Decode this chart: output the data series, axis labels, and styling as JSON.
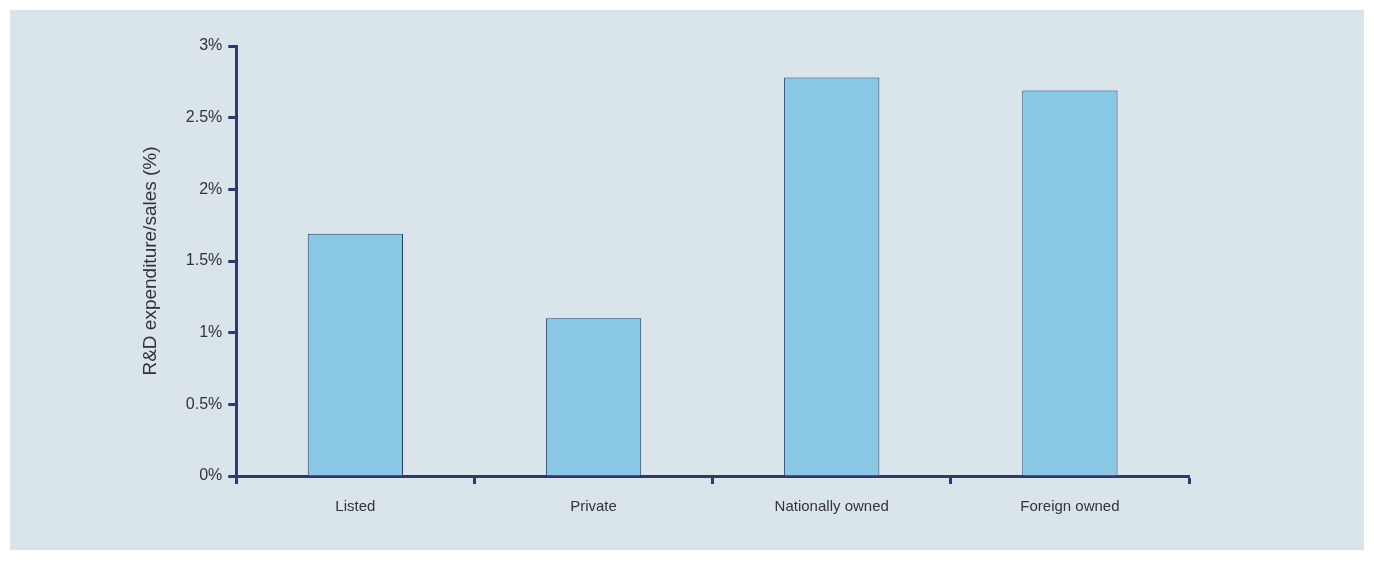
{
  "chart_data": {
    "type": "bar",
    "ylabel": "R&D expenditure/sales (%)",
    "categories": [
      "Listed",
      "Private",
      "Nationally owned",
      "Foreign owned"
    ],
    "values": [
      1.69,
      1.1,
      2.78,
      2.69
    ],
    "color": "#89c9e6",
    "ylim": [
      0,
      3
    ],
    "yticks": [
      {
        "value": 0,
        "label": "0%"
      },
      {
        "value": 0.5,
        "label": "0.5%"
      },
      {
        "value": 1,
        "label": "1%"
      },
      {
        "value": 1.5,
        "label": "1.5%"
      },
      {
        "value": 2,
        "label": "2%"
      },
      {
        "value": 2.5,
        "label": "2.5%"
      },
      {
        "value": 3,
        "label": "3%"
      }
    ],
    "grid": false,
    "legend": false
  }
}
